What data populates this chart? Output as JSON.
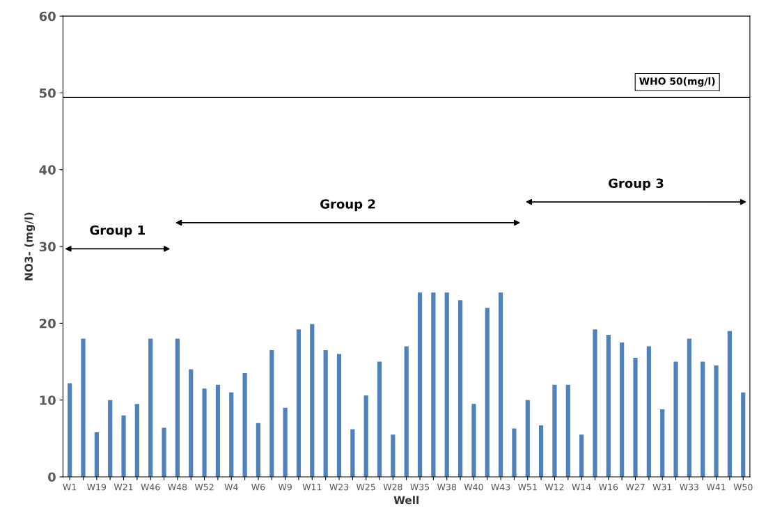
{
  "chart_data": {
    "type": "bar",
    "xlabel": "Well",
    "ylabel": "NO3- (mg/l)",
    "categories": [
      "W1",
      null,
      "W19",
      null,
      "W21",
      null,
      "W46",
      null,
      "W48",
      null,
      "W52",
      null,
      "W4",
      null,
      "W6",
      null,
      "W9",
      null,
      "W11",
      null,
      "W23",
      null,
      "W25",
      null,
      "W28",
      null,
      "W35",
      null,
      "W38",
      null,
      "W40",
      null,
      "W43",
      null,
      "W51",
      null,
      "W12",
      null,
      "W14",
      null,
      "W16",
      null,
      "W27",
      null,
      "W31",
      null,
      "W33",
      null,
      "W41",
      null,
      "W50"
    ],
    "values": [
      12.2,
      18,
      5.8,
      10,
      8,
      9.5,
      18,
      6.4,
      18,
      14,
      11.5,
      12,
      11,
      13.5,
      7,
      16.5,
      9,
      19.2,
      19.9,
      16.5,
      16,
      6.2,
      10.6,
      15,
      5.5,
      17,
      24,
      24,
      24,
      23,
      9.5,
      22,
      24,
      6.3,
      10,
      6.7,
      12,
      12,
      5.5,
      19.2,
      18.5,
      17.5,
      15.5,
      17,
      8.8,
      15,
      18,
      15,
      14.5,
      19,
      11
    ],
    "color": "#4f81bd",
    "ylim": [
      0,
      60
    ],
    "yticks": [
      0,
      10,
      20,
      30,
      40,
      50,
      60
    ],
    "grid": false,
    "legend": false,
    "ref_lines": [
      {
        "axis": "y",
        "value": 49.4,
        "label": "WHO 50(mg/l)",
        "color": "#000000"
      }
    ],
    "annotations": [
      "Group 1",
      "Group 2",
      "Group 3"
    ]
  }
}
